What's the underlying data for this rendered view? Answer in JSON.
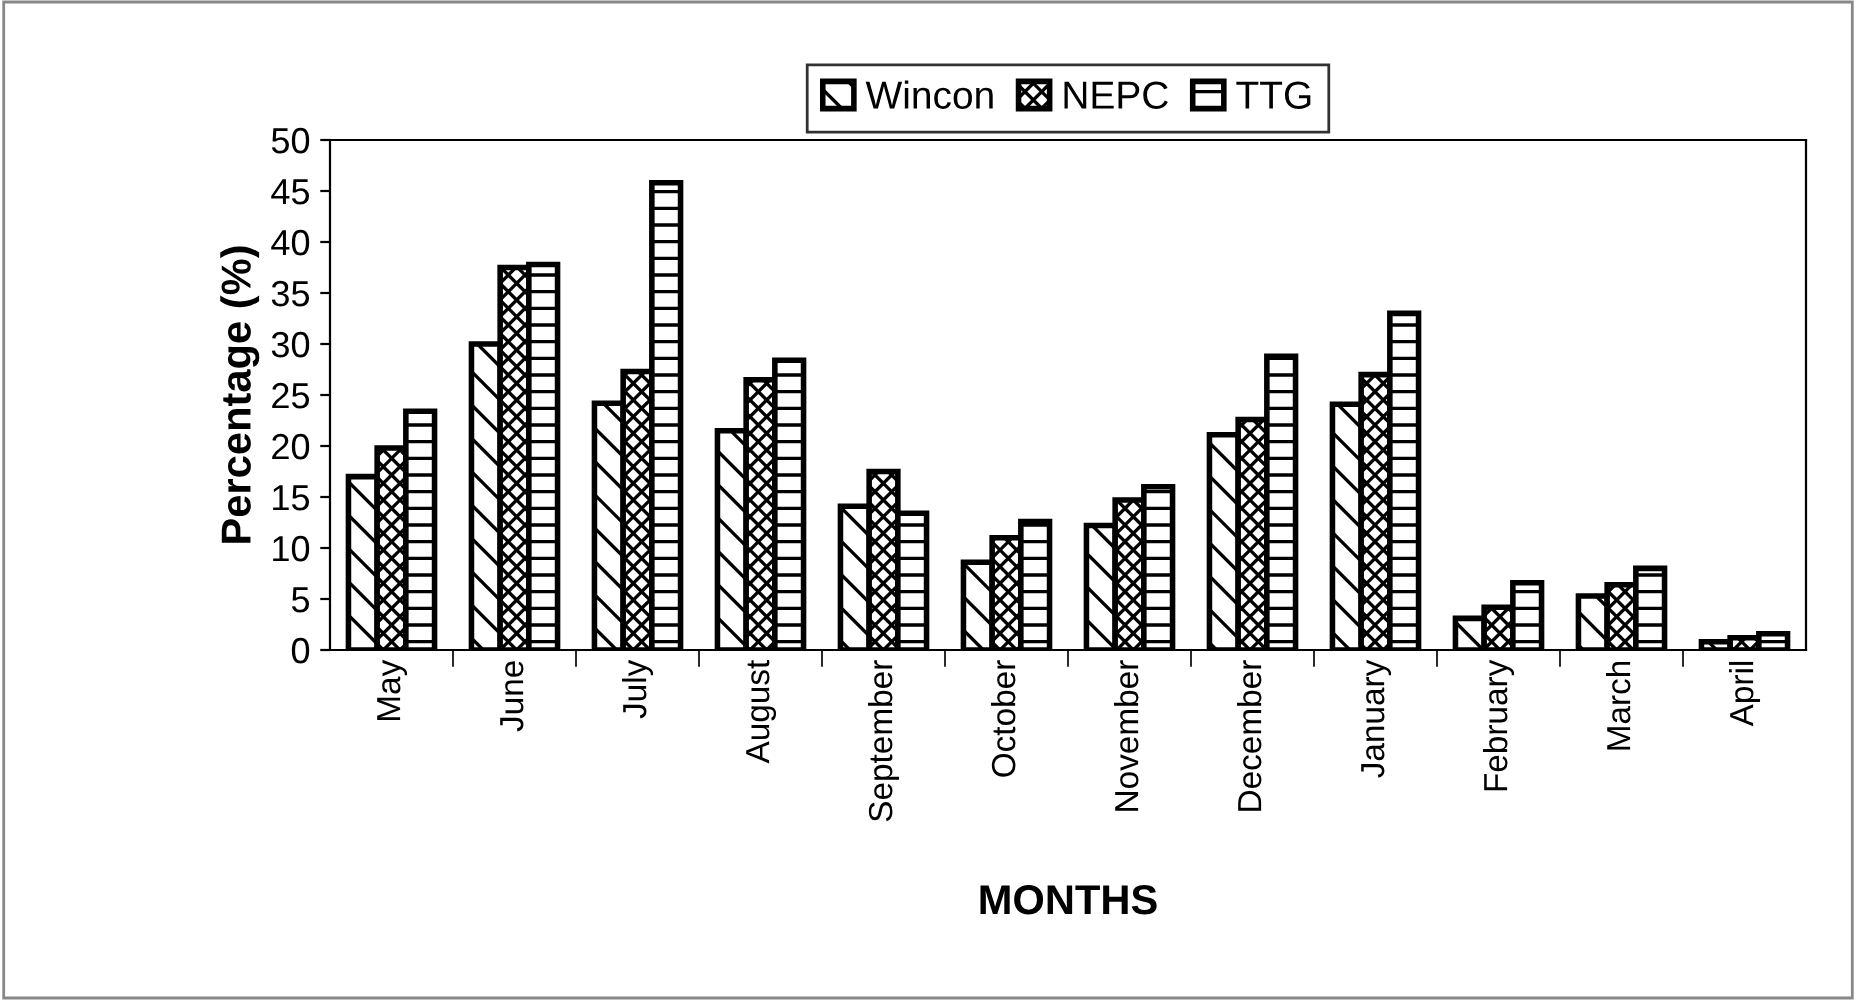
{
  "chart_data": {
    "type": "bar",
    "xlabel": "MONTHS",
    "ylabel": "Percentage (%)",
    "categories": [
      "May",
      "June",
      "July",
      "August",
      "September",
      "October",
      "November",
      "December",
      "January",
      "February",
      "March",
      "April"
    ],
    "series": [
      {
        "name": "Wincon",
        "color": "#000000",
        "values": [
          17,
          30,
          24.2,
          21.5,
          14.1,
          8.6,
          12.2,
          21.1,
          24.1,
          3.1,
          5.3,
          0.8
        ]
      },
      {
        "name": "NEPC",
        "color": "#000000",
        "values": [
          19.8,
          37.5,
          27.3,
          26.5,
          17.5,
          11,
          14.7,
          22.6,
          27,
          4.2,
          6.4,
          1.2
        ]
      },
      {
        "name": "TTG",
        "color": "#000000",
        "values": [
          23.4,
          37.8,
          45.8,
          28.4,
          13.4,
          12.6,
          16,
          28.8,
          33,
          6.6,
          8,
          1.6
        ]
      }
    ],
    "ylim": [
      0,
      50
    ],
    "yticks": [
      0,
      5,
      10,
      15,
      20,
      25,
      30,
      35,
      40,
      45,
      50
    ],
    "grid": false,
    "legend": "top"
  }
}
